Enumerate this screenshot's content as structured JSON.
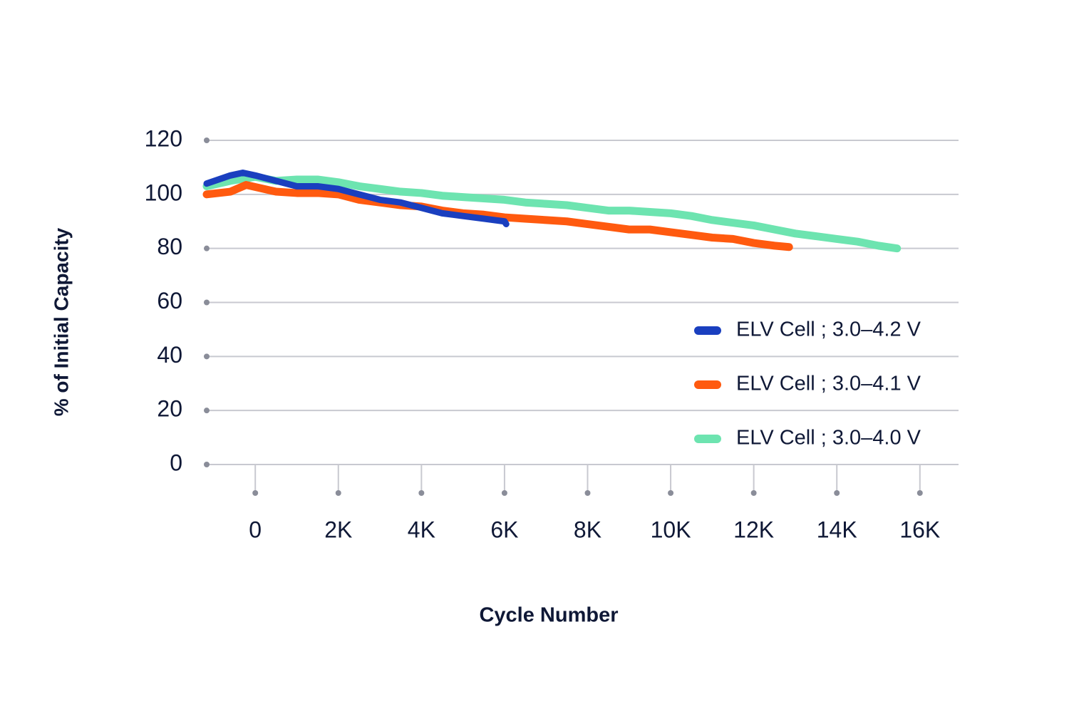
{
  "chart_data": {
    "type": "line",
    "xlabel": "Cycle Number",
    "ylabel": "% of Initial Capacity",
    "xlim": [
      -1170,
      16930
    ],
    "ylim": [
      0,
      120
    ],
    "xticks": [
      0,
      {
        "value": 2000,
        "label": "2K"
      },
      {
        "value": 4000,
        "label": "4K"
      },
      {
        "value": 6000,
        "label": "6K"
      },
      {
        "value": 8000,
        "label": "8K"
      },
      {
        "value": 10000,
        "label": "10K"
      },
      {
        "value": 12000,
        "label": "12K"
      },
      {
        "value": 14000,
        "label": "14K"
      },
      {
        "value": 16000,
        "label": "16K"
      }
    ],
    "yticks": [
      0,
      20,
      40,
      60,
      80,
      100,
      120
    ],
    "grid": true,
    "legend": "right",
    "series": [
      {
        "name": "ELV Cell ; 3.0–4.2 V",
        "color": "#1a3fbf",
        "x": [
          -1170,
          -600,
          -300,
          0,
          500,
          1000,
          1500,
          2000,
          2500,
          3000,
          3500,
          4000,
          4500,
          5000,
          5500,
          6000,
          6040
        ],
        "values": [
          104,
          107,
          108,
          107,
          105,
          103,
          103,
          102,
          100,
          98,
          97,
          95,
          93,
          92,
          91,
          90,
          89
        ]
      },
      {
        "name": "ELV Cell ; 3.0–4.1 V",
        "color": "#ff5a0f",
        "x": [
          -1170,
          -600,
          -220,
          500,
          1000,
          1500,
          2000,
          2500,
          3000,
          3500,
          4000,
          4500,
          5000,
          5500,
          6000,
          6500,
          7000,
          7500,
          8000,
          8500,
          9000,
          9500,
          10000,
          10500,
          11000,
          11500,
          12000,
          12500,
          12850
        ],
        "values": [
          100,
          101,
          103.5,
          101,
          100.5,
          100.5,
          100,
          98,
          97,
          96,
          95.5,
          94,
          93,
          92.5,
          91.5,
          91,
          90.5,
          90,
          89,
          88,
          87,
          87,
          86,
          85,
          84,
          83.5,
          82,
          81,
          80.5
        ]
      },
      {
        "name": "ELV Cell ; 3.0–4.0 V",
        "color": "#6de4b0",
        "x": [
          -1170,
          -600,
          0,
          500,
          1000,
          1500,
          2000,
          2500,
          3000,
          3500,
          4000,
          4500,
          5000,
          5500,
          6000,
          6500,
          7000,
          7500,
          8000,
          8500,
          9000,
          9500,
          10000,
          10500,
          11000,
          11500,
          12000,
          12500,
          13000,
          13500,
          14000,
          14500,
          15000,
          15450
        ],
        "values": [
          103,
          105,
          106.5,
          105,
          105.5,
          105.5,
          104.5,
          103,
          102,
          101,
          100.5,
          99.5,
          99,
          98.5,
          98,
          97,
          96.5,
          96,
          95,
          94,
          94,
          93.5,
          93,
          92,
          90.5,
          89.5,
          88.5,
          87,
          85.5,
          84.5,
          83.5,
          82.5,
          81,
          80
        ]
      }
    ]
  }
}
